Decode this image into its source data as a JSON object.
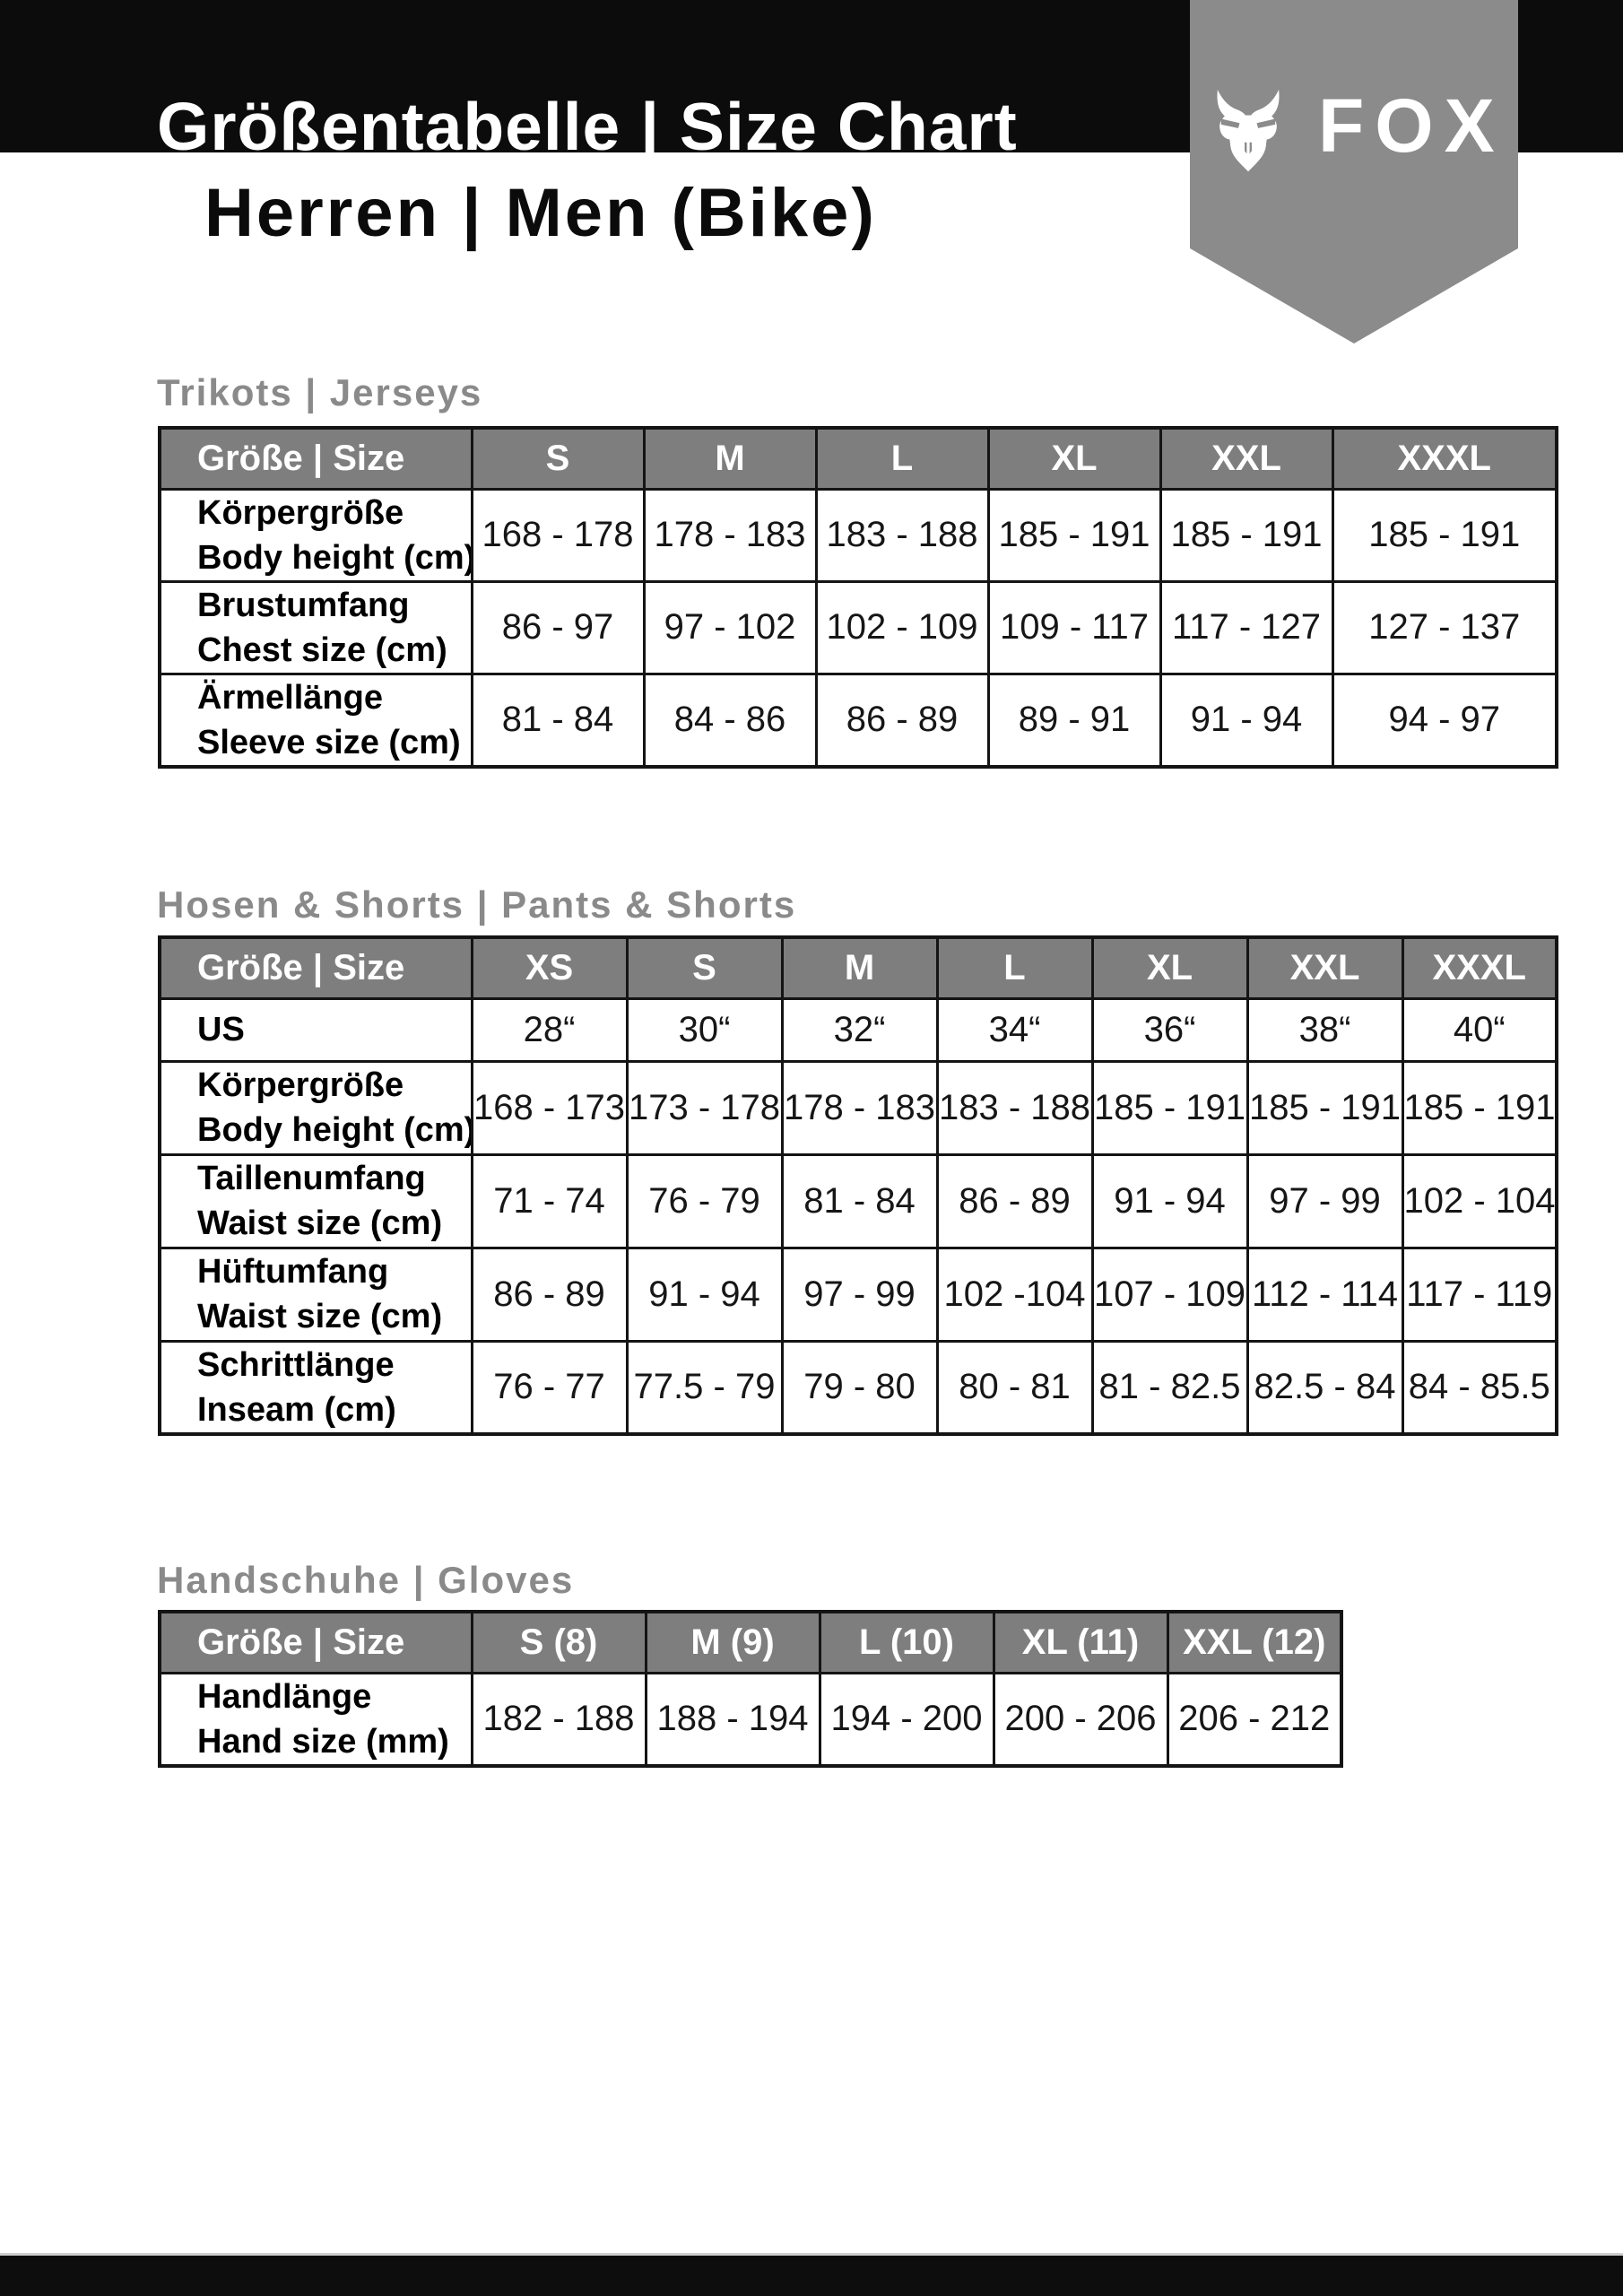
{
  "header": {
    "title": "Größentabelle | Size Chart",
    "subtitle": "Herren | Men (Bike)",
    "brand": {
      "wordmark": "FOX",
      "icon": "fox-head-icon"
    }
  },
  "sections": [
    {
      "title": "Trikots | Jerseys",
      "table": {
        "columns": [
          "Größe | Size",
          "S",
          "M",
          "L",
          "XL",
          "XXL",
          "XXXL"
        ],
        "rows": [
          {
            "label_de": "Körpergröße",
            "label_en": "Body height (cm)",
            "values": [
              "168 - 178",
              "178 - 183",
              "183 - 188",
              "185 - 191",
              "185 - 191",
              "185 - 191"
            ]
          },
          {
            "label_de": "Brustumfang",
            "label_en": "Chest size (cm)",
            "values": [
              "86 - 97",
              "97 - 102",
              "102 - 109",
              "109 - 117",
              "117 - 127",
              "127 - 137"
            ]
          },
          {
            "label_de": "Ärmellänge",
            "label_en": "Sleeve size (cm)",
            "values": [
              "81 - 84",
              "84 - 86",
              "86 - 89",
              "89 - 91",
              "91 - 94",
              "94 - 97"
            ]
          }
        ]
      }
    },
    {
      "title": "Hosen & Shorts | Pants & Shorts",
      "table": {
        "columns": [
          "Größe | Size",
          "XS",
          "S",
          "M",
          "L",
          "XL",
          "XXL",
          "XXXL"
        ],
        "rows": [
          {
            "label_de": "US",
            "label_en": "",
            "values": [
              "28“",
              "30“",
              "32“",
              "34“",
              "36“",
              "38“",
              "40“"
            ]
          },
          {
            "label_de": "Körpergröße",
            "label_en": "Body height (cm)",
            "values": [
              "168 - 173",
              "173 - 178",
              "178 - 183",
              "183 - 188",
              "185 - 191",
              "185 - 191",
              "185 - 191"
            ]
          },
          {
            "label_de": "Taillenumfang",
            "label_en": "Waist size (cm)",
            "values": [
              "71 - 74",
              "76 - 79",
              "81 - 84",
              "86 - 89",
              "91 - 94",
              "97 - 99",
              "102 - 104"
            ]
          },
          {
            "label_de": "Hüftumfang",
            "label_en": "Waist size (cm)",
            "values": [
              "86 - 89",
              "91 - 94",
              "97 - 99",
              "102 -104",
              "107 - 109",
              "112 - 114",
              "117 - 119"
            ]
          },
          {
            "label_de": "Schrittlänge",
            "label_en": "Inseam (cm)",
            "values": [
              "76 - 77",
              "77.5 - 79",
              "79 - 80",
              "80 - 81",
              "81 - 82.5",
              "82.5 - 84",
              "84 - 85.5"
            ]
          }
        ]
      }
    },
    {
      "title": "Handschuhe | Gloves",
      "table": {
        "columns": [
          "Größe | Size",
          "S (8)",
          "M (9)",
          "L (10)",
          "XL (11)",
          "XXL (12)"
        ],
        "rows": [
          {
            "label_de": "Handlänge",
            "label_en": "Hand size (mm)",
            "values": [
              "182 - 188",
              "188 - 194",
              "194 - 200",
              "200 - 206",
              "206 - 212"
            ]
          }
        ]
      }
    }
  ],
  "colors": {
    "header_bar": "#0c0c0c",
    "pennant_gray": "#8b8b8b",
    "table_header_gray": "#7e7e7e",
    "section_title_gray": "#8a8a8a",
    "table_border": "#141414",
    "footer_bar": "#0d0d0d",
    "footer_divider": "#cdcdcd"
  }
}
